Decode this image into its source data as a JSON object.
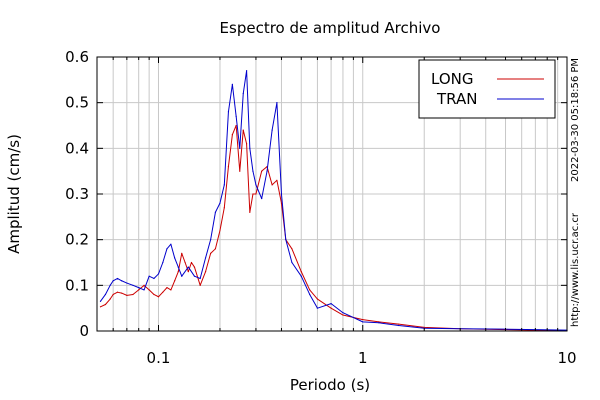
{
  "chart_data": {
    "type": "line",
    "title": "Espectro de amplitud Archivo",
    "xlabel": "Periodo (s)",
    "ylabel": "Amplitud (cm/s)",
    "x_scale": "log",
    "xlim": [
      0.05,
      10
    ],
    "ylim": [
      0,
      0.6
    ],
    "xticks": [
      0.1,
      1,
      10
    ],
    "xtick_labels": [
      "0.1",
      "1",
      "10"
    ],
    "yticks": [
      0,
      0.1,
      0.2,
      0.3,
      0.4,
      0.5,
      0.6
    ],
    "ytick_labels": [
      "0",
      "0.1",
      "0.2",
      "0.3",
      "0.4",
      "0.5",
      "0.6"
    ],
    "grid": true,
    "legend_position": "top-right",
    "side_text_top": "2022-03-30 05:18:56 PM",
    "side_text_bottom": "http://www.lis.ucr.ac.cr",
    "series": [
      {
        "name": "LONG",
        "color": "#cc0000",
        "points": [
          [
            0.052,
            0.053
          ],
          [
            0.055,
            0.058
          ],
          [
            0.058,
            0.07
          ],
          [
            0.06,
            0.08
          ],
          [
            0.063,
            0.085
          ],
          [
            0.066,
            0.083
          ],
          [
            0.07,
            0.078
          ],
          [
            0.075,
            0.08
          ],
          [
            0.08,
            0.09
          ],
          [
            0.085,
            0.1
          ],
          [
            0.09,
            0.09
          ],
          [
            0.095,
            0.08
          ],
          [
            0.1,
            0.075
          ],
          [
            0.105,
            0.085
          ],
          [
            0.11,
            0.095
          ],
          [
            0.115,
            0.09
          ],
          [
            0.12,
            0.11
          ],
          [
            0.125,
            0.13
          ],
          [
            0.13,
            0.17
          ],
          [
            0.135,
            0.15
          ],
          [
            0.14,
            0.13
          ],
          [
            0.145,
            0.15
          ],
          [
            0.15,
            0.14
          ],
          [
            0.16,
            0.1
          ],
          [
            0.17,
            0.13
          ],
          [
            0.18,
            0.17
          ],
          [
            0.19,
            0.18
          ],
          [
            0.2,
            0.22
          ],
          [
            0.21,
            0.27
          ],
          [
            0.22,
            0.36
          ],
          [
            0.23,
            0.43
          ],
          [
            0.24,
            0.45
          ],
          [
            0.25,
            0.35
          ],
          [
            0.26,
            0.44
          ],
          [
            0.27,
            0.41
          ],
          [
            0.28,
            0.26
          ],
          [
            0.29,
            0.3
          ],
          [
            0.3,
            0.3
          ],
          [
            0.32,
            0.35
          ],
          [
            0.34,
            0.36
          ],
          [
            0.36,
            0.32
          ],
          [
            0.38,
            0.33
          ],
          [
            0.4,
            0.28
          ],
          [
            0.42,
            0.2
          ],
          [
            0.45,
            0.18
          ],
          [
            0.5,
            0.13
          ],
          [
            0.55,
            0.09
          ],
          [
            0.6,
            0.07
          ],
          [
            0.7,
            0.05
          ],
          [
            0.8,
            0.035
          ],
          [
            1.0,
            0.025
          ],
          [
            1.2,
            0.02
          ],
          [
            1.5,
            0.015
          ],
          [
            2.0,
            0.008
          ],
          [
            3.0,
            0.005
          ],
          [
            5.0,
            0.003
          ],
          [
            7.0,
            0.002
          ],
          [
            10.0,
            0.001
          ]
        ]
      },
      {
        "name": "TRAN",
        "color": "#0000cc",
        "points": [
          [
            0.052,
            0.065
          ],
          [
            0.055,
            0.08
          ],
          [
            0.058,
            0.1
          ],
          [
            0.06,
            0.11
          ],
          [
            0.063,
            0.115
          ],
          [
            0.066,
            0.11
          ],
          [
            0.07,
            0.105
          ],
          [
            0.075,
            0.1
          ],
          [
            0.08,
            0.095
          ],
          [
            0.085,
            0.09
          ],
          [
            0.09,
            0.12
          ],
          [
            0.095,
            0.115
          ],
          [
            0.1,
            0.125
          ],
          [
            0.105,
            0.15
          ],
          [
            0.11,
            0.18
          ],
          [
            0.115,
            0.19
          ],
          [
            0.12,
            0.16
          ],
          [
            0.125,
            0.14
          ],
          [
            0.13,
            0.12
          ],
          [
            0.14,
            0.14
          ],
          [
            0.15,
            0.12
          ],
          [
            0.16,
            0.115
          ],
          [
            0.17,
            0.16
          ],
          [
            0.18,
            0.2
          ],
          [
            0.19,
            0.26
          ],
          [
            0.2,
            0.28
          ],
          [
            0.21,
            0.32
          ],
          [
            0.22,
            0.48
          ],
          [
            0.23,
            0.54
          ],
          [
            0.24,
            0.47
          ],
          [
            0.25,
            0.4
          ],
          [
            0.26,
            0.52
          ],
          [
            0.27,
            0.57
          ],
          [
            0.28,
            0.4
          ],
          [
            0.29,
            0.35
          ],
          [
            0.3,
            0.32
          ],
          [
            0.32,
            0.29
          ],
          [
            0.34,
            0.35
          ],
          [
            0.36,
            0.44
          ],
          [
            0.38,
            0.5
          ],
          [
            0.4,
            0.3
          ],
          [
            0.42,
            0.2
          ],
          [
            0.45,
            0.15
          ],
          [
            0.5,
            0.12
          ],
          [
            0.55,
            0.08
          ],
          [
            0.6,
            0.05
          ],
          [
            0.7,
            0.06
          ],
          [
            0.8,
            0.04
          ],
          [
            1.0,
            0.02
          ],
          [
            1.2,
            0.018
          ],
          [
            1.5,
            0.012
          ],
          [
            2.0,
            0.006
          ],
          [
            3.0,
            0.005
          ],
          [
            5.0,
            0.004
          ],
          [
            7.0,
            0.003
          ],
          [
            10.0,
            0.002
          ]
        ]
      }
    ]
  }
}
